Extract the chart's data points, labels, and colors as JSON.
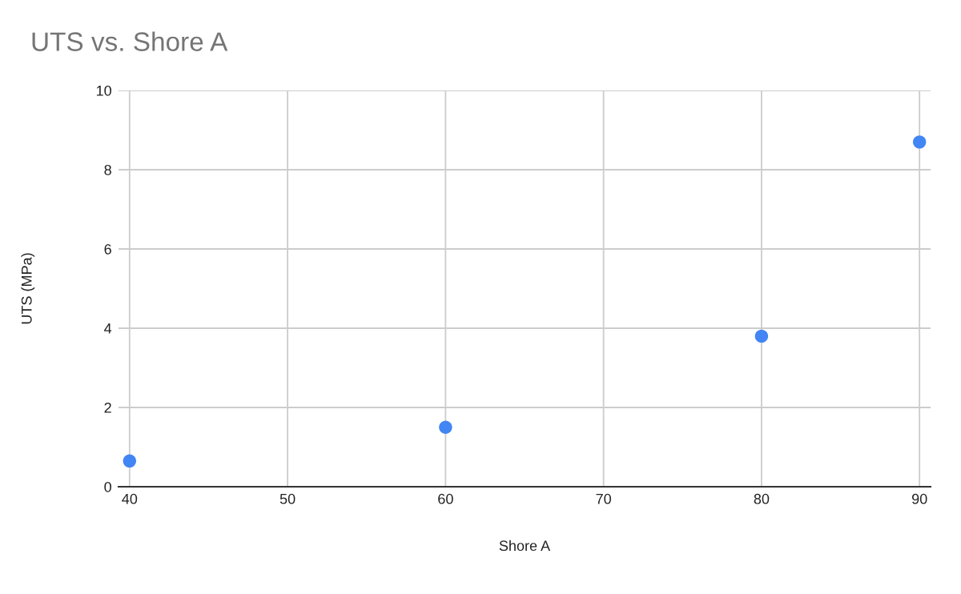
{
  "chart_data": {
    "type": "scatter",
    "title": "UTS vs. Shore A",
    "xlabel": "Shore A",
    "ylabel": "UTS (MPa)",
    "series": [
      {
        "color": "#4285f4",
        "x": [
          40,
          60,
          80,
          90
        ],
        "values": [
          0.65,
          1.5,
          3.8,
          8.7
        ]
      }
    ],
    "xlim": [
      39.3,
      90.7
    ],
    "xticks": [
      40,
      50,
      60,
      70,
      80,
      90
    ],
    "ylim": [
      0,
      10
    ],
    "yticks": [
      0,
      2,
      4,
      6,
      8,
      10
    ],
    "grid": true,
    "marker": "circle"
  }
}
